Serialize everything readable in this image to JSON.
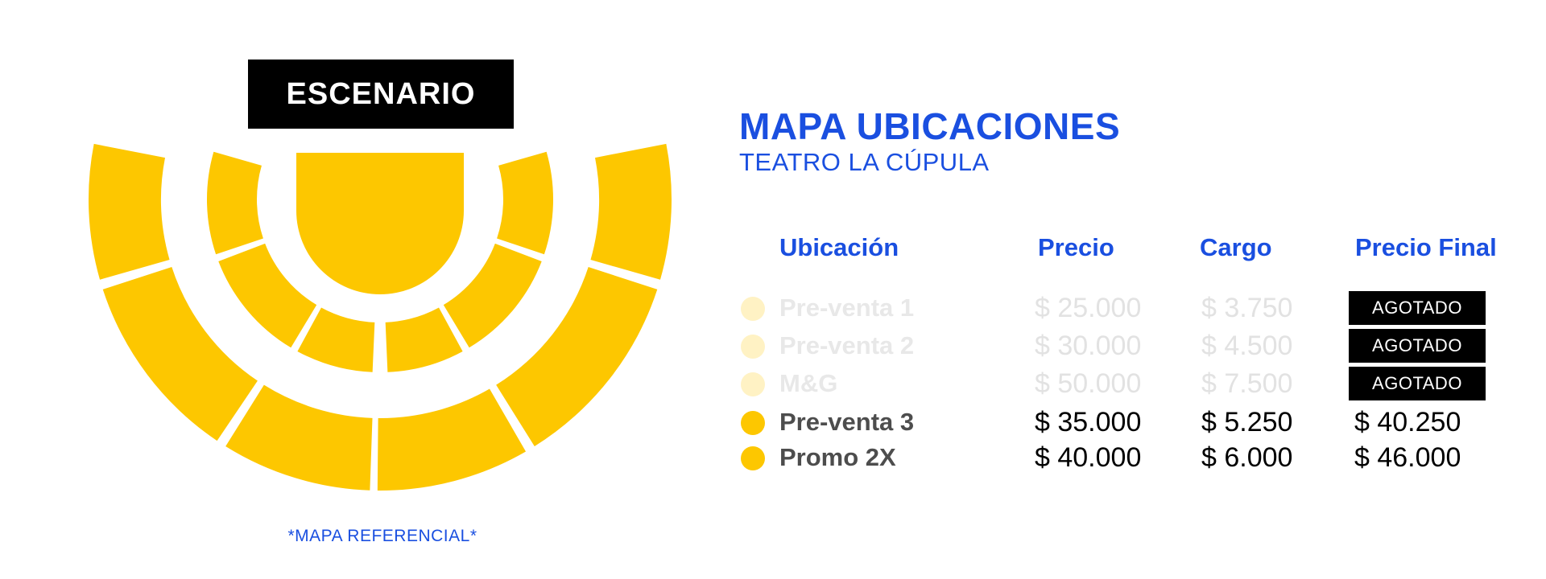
{
  "colors": {
    "seat": "#fdc700",
    "seat_faded": "#fff2c4",
    "accent": "#1a4fe0",
    "stage_bg": "#000000"
  },
  "stage_label": "ESCENARIO",
  "map_note": "*MAPA REFERENCIAL*",
  "title": "MAPA UBICACIONES",
  "subtitle": "TEATRO LA CÚPULA",
  "columns": {
    "location": "Ubicación",
    "price": "Precio",
    "charge": "Cargo",
    "final": "Precio Final"
  },
  "rows": [
    {
      "name": "Pre-venta 1",
      "price": "$ 25.000",
      "charge": "$ 3.750",
      "final": "AGOTADO",
      "sold_out": true
    },
    {
      "name": "Pre-venta 2",
      "price": "$ 30.000",
      "charge": "$ 4.500",
      "final": "AGOTADO",
      "sold_out": true
    },
    {
      "name": "M&G",
      "price": "$ 50.000",
      "charge": "$ 7.500",
      "final": "AGOTADO",
      "sold_out": true
    },
    {
      "name": "Pre-venta 3",
      "price": "$ 35.000",
      "charge": "$ 5.250",
      "final": "$ 40.250",
      "sold_out": false
    },
    {
      "name": "Promo 2X",
      "price": "$ 40.000",
      "charge": "$ 6.000",
      "final": "$ 46.000",
      "sold_out": false
    }
  ]
}
